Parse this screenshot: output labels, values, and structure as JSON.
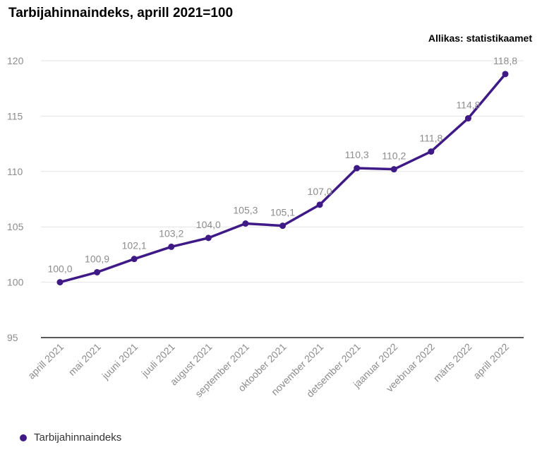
{
  "title": "Tarbijahinnaindeks, aprill 2021=100",
  "source": "Allikas: statistikaamet",
  "colors": {
    "series": "#3f1a87",
    "grid": "#e3e3e3",
    "axis": "#222222",
    "tick_text": "#8c8c8c"
  },
  "chart_data": {
    "type": "line",
    "title": "Tarbijahinnaindeks, aprill 2021=100",
    "xlabel": "",
    "ylabel": "",
    "ylim": [
      95,
      120
    ],
    "yticks": [
      95,
      100,
      105,
      110,
      115,
      120
    ],
    "grid": true,
    "legend_position": "bottom-left",
    "categories": [
      "aprill 2021",
      "mai 2021",
      "juuni 2021",
      "juuli 2021",
      "august 2021",
      "september 2021",
      "oktoober 2021",
      "november 2021",
      "detsember 2021",
      "jaanuar 2022",
      "veebruar 2022",
      "märts 2022",
      "aprill 2022"
    ],
    "series": [
      {
        "name": "Tarbijahinnaindeks",
        "values": [
          100.0,
          100.9,
          102.1,
          103.2,
          104.0,
          105.3,
          105.1,
          107.0,
          110.3,
          110.2,
          111.8,
          114.8,
          118.8
        ],
        "labels": [
          "100,0",
          "100,9",
          "102,1",
          "103,2",
          "104,0",
          "105,3",
          "105,1",
          "107,0",
          "110,3",
          "110,2",
          "111,8",
          "114,8",
          "118,8"
        ]
      }
    ]
  }
}
